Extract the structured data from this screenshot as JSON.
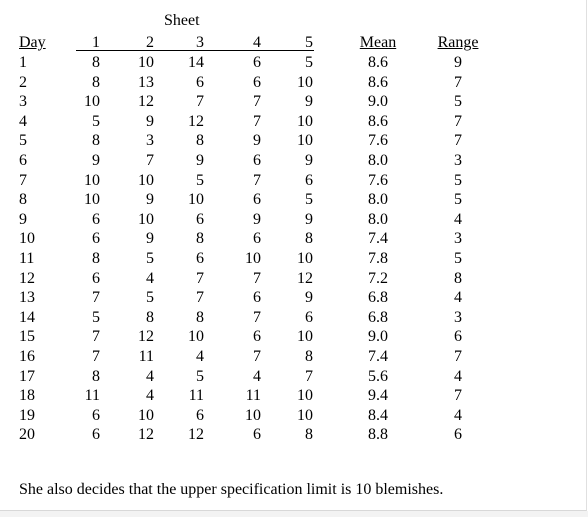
{
  "table": {
    "group_header": "Sheet",
    "headers": [
      "Day",
      "1",
      "2",
      "3",
      "4",
      "5",
      "Mean",
      "Range"
    ],
    "rows": [
      [
        "1",
        "8",
        "10",
        "14",
        "6",
        "5",
        "8.6",
        "9"
      ],
      [
        "2",
        "8",
        "13",
        "6",
        "6",
        "10",
        "8.6",
        "7"
      ],
      [
        "3",
        "10",
        "12",
        "7",
        "7",
        "9",
        "9.0",
        "5"
      ],
      [
        "4",
        "5",
        "9",
        "12",
        "7",
        "10",
        "8.6",
        "7"
      ],
      [
        "5",
        "8",
        "3",
        "8",
        "9",
        "10",
        "7.6",
        "7"
      ],
      [
        "6",
        "9",
        "7",
        "9",
        "6",
        "9",
        "8.0",
        "3"
      ],
      [
        "7",
        "10",
        "10",
        "5",
        "7",
        "6",
        "7.6",
        "5"
      ],
      [
        "8",
        "10",
        "9",
        "10",
        "6",
        "5",
        "8.0",
        "5"
      ],
      [
        "9",
        "6",
        "10",
        "6",
        "9",
        "9",
        "8.0",
        "4"
      ],
      [
        "10",
        "6",
        "9",
        "8",
        "6",
        "8",
        "7.4",
        "3"
      ],
      [
        "11",
        "8",
        "5",
        "6",
        "10",
        "10",
        "7.8",
        "5"
      ],
      [
        "12",
        "6",
        "4",
        "7",
        "7",
        "12",
        "7.2",
        "8"
      ],
      [
        "13",
        "7",
        "5",
        "7",
        "6",
        "9",
        "6.8",
        "4"
      ],
      [
        "14",
        "5",
        "8",
        "8",
        "7",
        "6",
        "6.8",
        "3"
      ],
      [
        "15",
        "7",
        "12",
        "10",
        "6",
        "10",
        "9.0",
        "6"
      ],
      [
        "16",
        "7",
        "11",
        "4",
        "7",
        "8",
        "7.4",
        "7"
      ],
      [
        "17",
        "8",
        "4",
        "5",
        "4",
        "7",
        "5.6",
        "4"
      ],
      [
        "18",
        "11",
        "4",
        "11",
        "11",
        "10",
        "9.4",
        "7"
      ],
      [
        "19",
        "6",
        "10",
        "6",
        "10",
        "10",
        "8.4",
        "4"
      ],
      [
        "20",
        "6",
        "12",
        "12",
        "6",
        "8",
        "8.8",
        "6"
      ]
    ]
  },
  "footnote": "She also decides that the upper specification limit is 10 blemishes."
}
